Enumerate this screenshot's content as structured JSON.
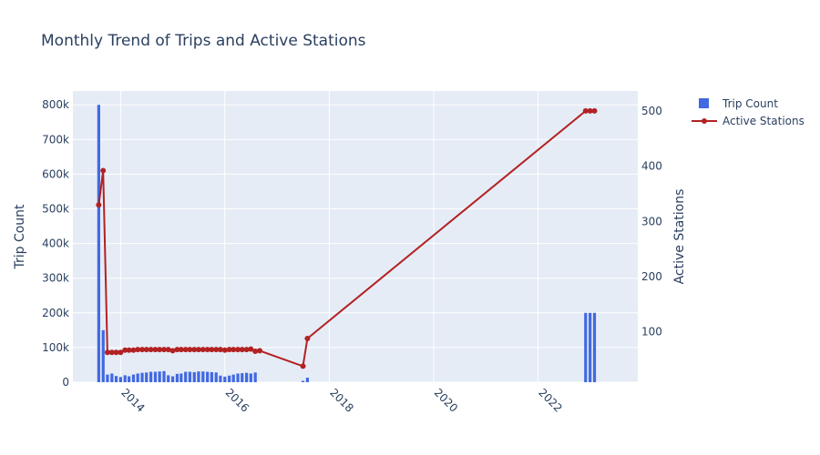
{
  "chart_data": {
    "type": "bar+line",
    "title": "Monthly Trend of Trips and Active Stations",
    "y_axis_title": "Trip Count",
    "y2_axis_title": "Active Stations",
    "x_ticks": [
      "2014",
      "2016",
      "2018",
      "2020",
      "2022"
    ],
    "y_ticks": [
      "0",
      "100k",
      "200k",
      "300k",
      "400k",
      "500k",
      "600k",
      "700k",
      "800k"
    ],
    "y2_ticks": [
      "100",
      "200",
      "300",
      "400",
      "500"
    ],
    "xlim": [
      "2013-02-01",
      "2023-12-01"
    ],
    "ylim": [
      0,
      840000
    ],
    "y2lim": [
      9,
      536
    ],
    "legend_position": "top-right outside",
    "series": [
      {
        "name": "Trip Count",
        "kind": "bar",
        "axis": "y",
        "color": "#4169e1",
        "points": [
          [
            "2013-08",
            800000
          ],
          [
            "2013-09",
            150000
          ],
          [
            "2013-10",
            22000
          ],
          [
            "2013-11",
            25000
          ],
          [
            "2013-12",
            18000
          ],
          [
            "2014-01",
            15000
          ],
          [
            "2014-02",
            20000
          ],
          [
            "2014-03",
            17000
          ],
          [
            "2014-04",
            22000
          ],
          [
            "2014-05",
            25000
          ],
          [
            "2014-06",
            27000
          ],
          [
            "2014-07",
            28000
          ],
          [
            "2014-08",
            30000
          ],
          [
            "2014-09",
            30000
          ],
          [
            "2014-10",
            31000
          ],
          [
            "2014-11",
            32000
          ],
          [
            "2014-12",
            20000
          ],
          [
            "2015-01",
            17000
          ],
          [
            "2015-02",
            24000
          ],
          [
            "2015-03",
            25000
          ],
          [
            "2015-04",
            30000
          ],
          [
            "2015-05",
            30000
          ],
          [
            "2015-06",
            29000
          ],
          [
            "2015-07",
            31000
          ],
          [
            "2015-08",
            31000
          ],
          [
            "2015-09",
            30000
          ],
          [
            "2015-10",
            29000
          ],
          [
            "2015-11",
            28000
          ],
          [
            "2015-12",
            19000
          ],
          [
            "2016-01",
            16000
          ],
          [
            "2016-02",
            19000
          ],
          [
            "2016-03",
            22000
          ],
          [
            "2016-04",
            25000
          ],
          [
            "2016-05",
            26000
          ],
          [
            "2016-06",
            27000
          ],
          [
            "2016-07",
            25000
          ],
          [
            "2016-08",
            28000
          ],
          [
            "2017-07",
            4000
          ],
          [
            "2017-08",
            13000
          ],
          [
            "2022-12",
            200000
          ],
          [
            "2023-01",
            200000
          ],
          [
            "2023-02",
            200000
          ]
        ]
      },
      {
        "name": "Active Stations",
        "kind": "line",
        "axis": "y2",
        "color": "#b22222",
        "points": [
          [
            "2013-08",
            330
          ],
          [
            "2013-09",
            392
          ],
          [
            "2013-10",
            63
          ],
          [
            "2013-11",
            63
          ],
          [
            "2013-12",
            63
          ],
          [
            "2014-01",
            63
          ],
          [
            "2014-02",
            67
          ],
          [
            "2014-03",
            67
          ],
          [
            "2014-04",
            67
          ],
          [
            "2014-05",
            68
          ],
          [
            "2014-06",
            68
          ],
          [
            "2014-07",
            68
          ],
          [
            "2014-08",
            68
          ],
          [
            "2014-09",
            68
          ],
          [
            "2014-10",
            68
          ],
          [
            "2014-11",
            68
          ],
          [
            "2014-12",
            68
          ],
          [
            "2015-01",
            66
          ],
          [
            "2015-02",
            68
          ],
          [
            "2015-03",
            68
          ],
          [
            "2015-04",
            68
          ],
          [
            "2015-05",
            68
          ],
          [
            "2015-06",
            68
          ],
          [
            "2015-07",
            68
          ],
          [
            "2015-08",
            68
          ],
          [
            "2015-09",
            68
          ],
          [
            "2015-10",
            68
          ],
          [
            "2015-11",
            68
          ],
          [
            "2015-12",
            68
          ],
          [
            "2016-01",
            67
          ],
          [
            "2016-02",
            68
          ],
          [
            "2016-03",
            68
          ],
          [
            "2016-04",
            68
          ],
          [
            "2016-05",
            68
          ],
          [
            "2016-06",
            68
          ],
          [
            "2016-07",
            69
          ],
          [
            "2016-08",
            65
          ],
          [
            "2016-09",
            66
          ],
          [
            "2017-07",
            38
          ],
          [
            "2017-08",
            88
          ],
          [
            "2022-12",
            500
          ],
          [
            "2023-01",
            500
          ],
          [
            "2023-02",
            500
          ]
        ]
      }
    ]
  }
}
